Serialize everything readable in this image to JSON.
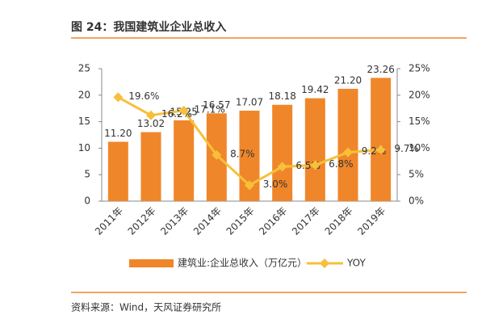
{
  "chart_data": {
    "type": "bar",
    "title": "图 24：我国建筑业企业总收入",
    "categories": [
      "2011年",
      "2012年",
      "2013年",
      "2014年",
      "2015年",
      "2016年",
      "2017年",
      "2018年",
      "2019年"
    ],
    "series": [
      {
        "name": "建筑业:企业总收入（万亿元）",
        "type": "bar",
        "color": "#f0862a",
        "values": [
          11.2,
          13.02,
          15.25,
          16.57,
          17.07,
          18.18,
          19.42,
          21.2,
          23.26
        ],
        "value_labels": [
          "11.20",
          "13.02",
          "15.25",
          "16.57",
          "17.07",
          "18.18",
          "19.42",
          "21.20",
          "23.26"
        ]
      },
      {
        "name": "YOY",
        "type": "line",
        "axis": "y2",
        "color": "#f7c03a",
        "values": [
          19.6,
          16.2,
          17.1,
          8.7,
          3.0,
          6.5,
          6.8,
          9.2,
          9.7
        ],
        "value_labels": [
          "19.6%",
          "16.2%",
          "17.1%",
          "8.7%",
          "3.0%",
          "6.5%",
          "6.8%",
          "9.2%",
          "9.7%"
        ]
      }
    ],
    "ylim": [
      0,
      25
    ],
    "yticks": [
      0,
      5,
      10,
      15,
      20,
      25
    ],
    "y2lim": [
      0,
      25
    ],
    "y2ticks": [
      {
        "value": 0,
        "label": "0%"
      },
      {
        "value": 5,
        "label": "5%"
      },
      {
        "value": 10,
        "label": "10%"
      },
      {
        "value": 15,
        "label": "15%"
      },
      {
        "value": 20,
        "label": "20%"
      },
      {
        "value": 25,
        "label": "25%"
      }
    ],
    "source": "资料来源：Wind，天风证券研究所"
  }
}
